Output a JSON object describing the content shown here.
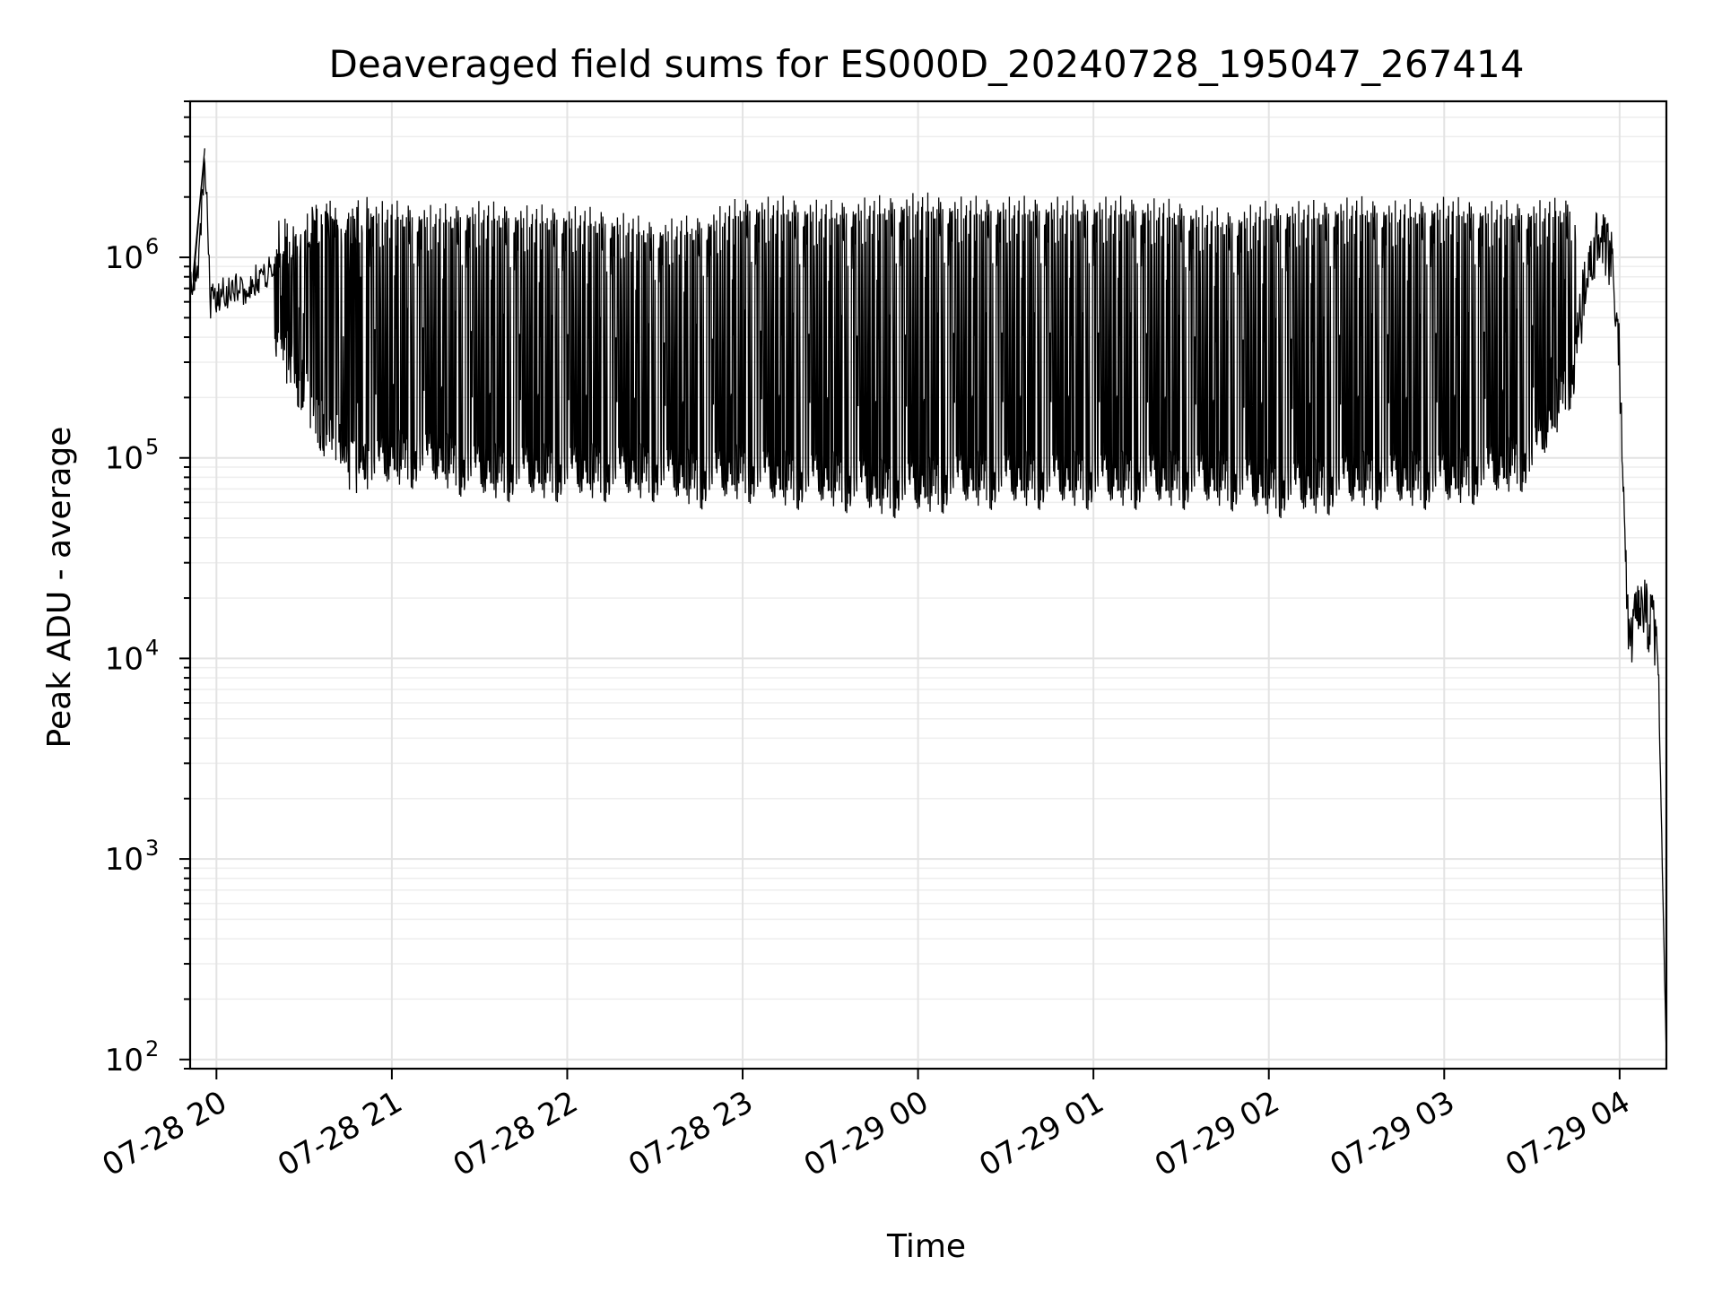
{
  "chart_data": {
    "type": "line",
    "title": "Deaveraged field sums for ES000D_20240728_195047_267414",
    "xlabel": "Time",
    "ylabel": "Peak ADU - average",
    "yscale": "log",
    "ylim": [
      90,
      6000000
    ],
    "xlim": [
      "2024-07-28 19:51",
      "2024-07-29 04:16"
    ],
    "grid": true,
    "line_color": "#000000",
    "x_tick_labels": [
      "07-28 20",
      "07-28 21",
      "07-28 22",
      "07-28 23",
      "07-29 00",
      "07-29 01",
      "07-29 02",
      "07-29 03",
      "07-29 04"
    ],
    "x_ticks": [
      "2024-07-28 20:00",
      "2024-07-28 21:00",
      "2024-07-28 22:00",
      "2024-07-28 23:00",
      "2024-07-29 00:00",
      "2024-07-29 01:00",
      "2024-07-29 02:00",
      "2024-07-29 03:00",
      "2024-07-29 04:00"
    ],
    "y_ticks": [
      {
        "value": 100,
        "base": "10",
        "exp": "2"
      },
      {
        "value": 1000,
        "base": "10",
        "exp": "3"
      },
      {
        "value": 10000,
        "base": "10",
        "exp": "4"
      },
      {
        "value": 100000,
        "base": "10",
        "exp": "5"
      },
      {
        "value": 1000000,
        "base": "10",
        "exp": "6"
      }
    ],
    "series": [
      {
        "x": [
          "2024-07-28 19:51",
          "2024-07-28 19:54",
          "2024-07-28 19:56",
          "2024-07-28 19:58",
          "2024-07-28 20:05",
          "2024-07-28 20:12",
          "2024-07-28 20:20",
          "2024-07-28 20:30",
          "2024-07-28 20:40",
          "2024-07-28 20:50",
          "2024-07-28 21:00",
          "2024-07-28 21:15",
          "2024-07-28 21:30",
          "2024-07-28 21:45",
          "2024-07-28 22:00",
          "2024-07-28 22:15",
          "2024-07-28 22:30",
          "2024-07-28 22:45",
          "2024-07-28 23:00",
          "2024-07-28 23:15",
          "2024-07-28 23:30",
          "2024-07-28 23:45",
          "2024-07-29 00:00",
          "2024-07-29 00:15",
          "2024-07-29 00:30",
          "2024-07-29 00:45",
          "2024-07-29 01:00",
          "2024-07-29 01:15",
          "2024-07-29 01:30",
          "2024-07-29 01:45",
          "2024-07-29 02:00",
          "2024-07-29 02:15",
          "2024-07-29 02:30",
          "2024-07-29 02:45",
          "2024-07-29 03:00",
          "2024-07-29 03:15",
          "2024-07-29 03:30",
          "2024-07-29 03:45",
          "2024-07-29 03:52",
          "2024-07-29 03:57",
          "2024-07-29 04:00",
          "2024-07-29 04:03",
          "2024-07-29 04:08",
          "2024-07-29 04:13",
          "2024-07-29 04:16"
        ],
        "y": [
          680000,
          900000,
          3500000,
          600000,
          700000,
          720000,
          900000,
          500000,
          250000,
          1500000,
          1800000,
          1500000,
          1600000,
          1500000,
          1200000,
          800000,
          600000,
          250000,
          90000,
          80000,
          75000,
          75000,
          1500000,
          1800000,
          1700000,
          1600000,
          1700000,
          1400000,
          1000000,
          600000,
          90000,
          85000,
          80000,
          85000,
          80000,
          80000,
          100000,
          400000,
          1200000,
          1000000,
          300000,
          12000,
          18000,
          12000,
          100
        ]
      }
    ],
    "envelope": {
      "x": [
        "2024-07-28 20:20",
        "2024-07-28 20:30",
        "2024-07-28 20:40",
        "2024-07-28 20:50",
        "2024-07-28 21:00",
        "2024-07-28 21:15",
        "2024-07-28 21:30",
        "2024-07-28 21:45",
        "2024-07-28 22:00",
        "2024-07-28 22:15",
        "2024-07-28 22:30",
        "2024-07-28 22:45",
        "2024-07-28 23:00",
        "2024-07-28 23:15",
        "2024-07-28 23:30",
        "2024-07-28 23:45",
        "2024-07-29 00:00",
        "2024-07-29 00:15",
        "2024-07-29 00:30",
        "2024-07-29 00:45",
        "2024-07-29 01:00",
        "2024-07-29 01:15",
        "2024-07-29 01:30",
        "2024-07-29 01:45",
        "2024-07-29 02:00",
        "2024-07-29 02:15",
        "2024-07-29 02:30",
        "2024-07-29 02:45",
        "2024-07-29 03:00",
        "2024-07-29 03:15",
        "2024-07-29 03:30",
        "2024-07-29 03:45"
      ],
      "high": [
        1500000,
        1800000,
        2000000,
        2000000,
        2000000,
        1900000,
        2000000,
        1900000,
        1900000,
        1800000,
        1600000,
        1700000,
        2100000,
        2100000,
        2000000,
        2100000,
        2200000,
        2100000,
        2100000,
        2100000,
        2100000,
        2100000,
        2000000,
        1800000,
        2000000,
        2000000,
        2100000,
        2000000,
        2100000,
        2000000,
        2000000,
        2100000
      ],
      "low": [
        300000,
        150000,
        80000,
        60000,
        70000,
        70000,
        60000,
        60000,
        60000,
        60000,
        60000,
        55000,
        60000,
        55000,
        55000,
        50000,
        50000,
        55000,
        55000,
        55000,
        55000,
        55000,
        55000,
        55000,
        50000,
        50000,
        55000,
        55000,
        55000,
        60000,
        70000,
        200000
      ]
    }
  }
}
